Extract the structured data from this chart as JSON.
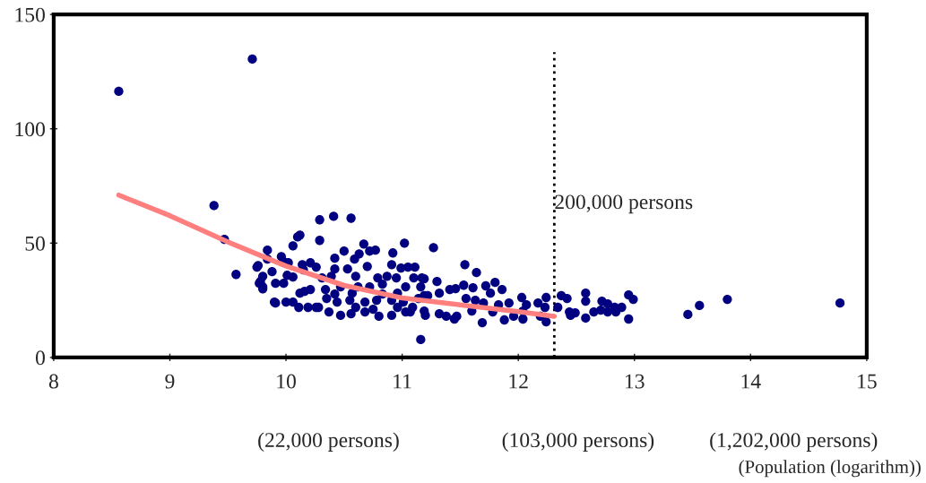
{
  "chart_data": {
    "type": "scatter",
    "xlabel": "(Population (logarithm))",
    "xlim": [
      8,
      15
    ],
    "xticks": [
      8,
      9,
      10,
      11,
      12,
      13,
      14,
      15
    ],
    "ylim": [
      0,
      150
    ],
    "yticks": [
      0,
      50,
      100,
      150
    ],
    "grid": false,
    "legend": false,
    "marker": "circle",
    "series": [
      {
        "color": "#000080",
        "x": [
          8.56,
          9.71,
          9.38,
          9.47,
          9.57,
          9.84,
          9.76,
          9.77,
          9.8,
          9.9,
          10.29,
          10.41,
          10.56,
          10.12,
          10.1,
          10.29,
          10.06,
          9.84,
          9.96,
          9.75,
          9.8,
          9.78,
          9.8,
          9.91,
          9.98,
          9.91,
          10.0,
          10.06,
          10.11,
          10.19,
          10.28,
          10.12,
          10.16,
          10.21,
          9.98,
          10.02,
          10.14,
          10.21,
          10.26,
          10.01,
          10.06,
          10.15,
          9.88,
          10.42,
          10.5,
          10.59,
          10.63,
          10.67,
          10.72,
          10.77,
          10.92,
          11.02,
          10.91,
          10.99,
          11.05,
          11.11,
          11.1,
          11.17,
          10.42,
          10.53,
          10.7,
          10.31,
          10.39,
          10.6,
          10.79,
          10.87,
          10.95,
          10.34,
          10.47,
          10.62,
          10.72,
          10.83,
          11.03,
          11.16,
          10.35,
          10.44,
          10.55,
          10.68,
          10.78,
          10.91,
          11.01,
          11.14,
          10.37,
          10.47,
          10.56,
          10.68,
          10.8,
          10.91,
          11.03,
          11.2,
          11.16,
          10.26,
          10.6,
          10.75,
          10.96,
          11.09,
          10.42,
          10.57,
          10.83,
          10.96,
          11.19,
          11.27,
          11.54,
          11.64,
          11.19,
          11.3,
          11.53,
          11.61,
          11.72,
          11.8,
          11.86,
          11.76,
          11.41,
          11.46,
          11.32,
          11.22,
          11.55,
          11.63,
          11.7,
          11.83,
          11.92,
          12.03,
          12.07,
          12.17,
          12.24,
          12.23,
          12.19,
          12.24,
          12.04,
          11.96,
          11.88,
          11.69,
          11.45,
          11.47,
          11.38,
          11.32,
          11.19,
          11.07,
          11.6,
          11.78,
          12.04,
          12.34,
          12.37,
          12.42,
          12.44,
          12.45,
          12.49,
          12.58,
          12.58,
          12.58,
          12.65,
          12.71,
          12.72,
          12.77,
          12.77,
          12.83,
          12.84,
          12.89,
          12.95,
          12.99,
          12.95,
          13.46,
          13.56,
          13.8,
          14.77
        ],
        "values": [
          116.4,
          130.5,
          66.4,
          51.6,
          36.3,
          46.9,
          40.2,
          32.4,
          30.0,
          24.2,
          60.2,
          61.7,
          60.9,
          53.5,
          52.7,
          51.2,
          48.8,
          43.0,
          44.1,
          39.5,
          35.5,
          33.2,
          30.9,
          32.4,
          32.4,
          23.8,
          24.2,
          24.2,
          21.9,
          21.9,
          21.9,
          28.1,
          28.9,
          29.7,
          41.8,
          41.4,
          40.6,
          41.4,
          39.5,
          35.9,
          35.2,
          38.3,
          37.5,
          43.4,
          46.5,
          43.0,
          45.3,
          49.6,
          46.5,
          46.9,
          45.7,
          50.0,
          40.6,
          39.1,
          39.5,
          39.5,
          34.8,
          34.8,
          38.7,
          38.7,
          39.8,
          34.8,
          35.5,
          35.5,
          34.8,
          35.5,
          34.8,
          29.7,
          30.9,
          30.9,
          30.9,
          32.0,
          30.9,
          30.9,
          25.8,
          24.2,
          25.0,
          24.2,
          25.0,
          25.0,
          24.2,
          25.8,
          19.9,
          18.4,
          19.1,
          19.9,
          18.0,
          18.4,
          19.9,
          18.4,
          7.8,
          21.9,
          21.9,
          21.1,
          21.9,
          21.9,
          27.7,
          28.1,
          27.7,
          28.1,
          27.0,
          48.0,
          40.6,
          37.1,
          34.4,
          33.2,
          31.6,
          30.5,
          31.3,
          32.8,
          29.7,
          28.1,
          29.7,
          30.1,
          28.1,
          27.0,
          25.8,
          25.0,
          23.8,
          23.0,
          23.8,
          26.2,
          23.0,
          23.8,
          26.2,
          21.9,
          18.0,
          15.6,
          16.8,
          18.0,
          16.4,
          15.2,
          16.8,
          18.0,
          18.0,
          19.1,
          20.3,
          19.9,
          20.3,
          19.9,
          20.3,
          21.9,
          27.0,
          25.8,
          19.9,
          18.4,
          19.5,
          28.1,
          24.6,
          17.2,
          19.9,
          20.7,
          24.6,
          23.4,
          19.9,
          21.9,
          19.9,
          21.9,
          27.3,
          25.4,
          16.8,
          18.8,
          22.7,
          25.4,
          23.8
        ]
      },
      {
        "type": "line",
        "color": "#ff7f7f",
        "marker": "none",
        "line_style": "solid",
        "x": [
          8.56,
          9.0,
          9.5,
          10.0,
          10.5,
          11.0,
          11.5,
          12.0,
          12.31
        ],
        "values": [
          71.0,
          62.0,
          50.5,
          40.0,
          31.5,
          26.0,
          23.0,
          20.0,
          18.0
        ]
      }
    ],
    "ref_lines": [
      {
        "axis": "x",
        "value": 12.31,
        "label": "200,000 persons",
        "color": "#000000",
        "line_style": "dotted"
      }
    ],
    "annotations": [
      "(22,000 persons)",
      "(103,000 persons)",
      "(1,202,000 persons)"
    ]
  }
}
